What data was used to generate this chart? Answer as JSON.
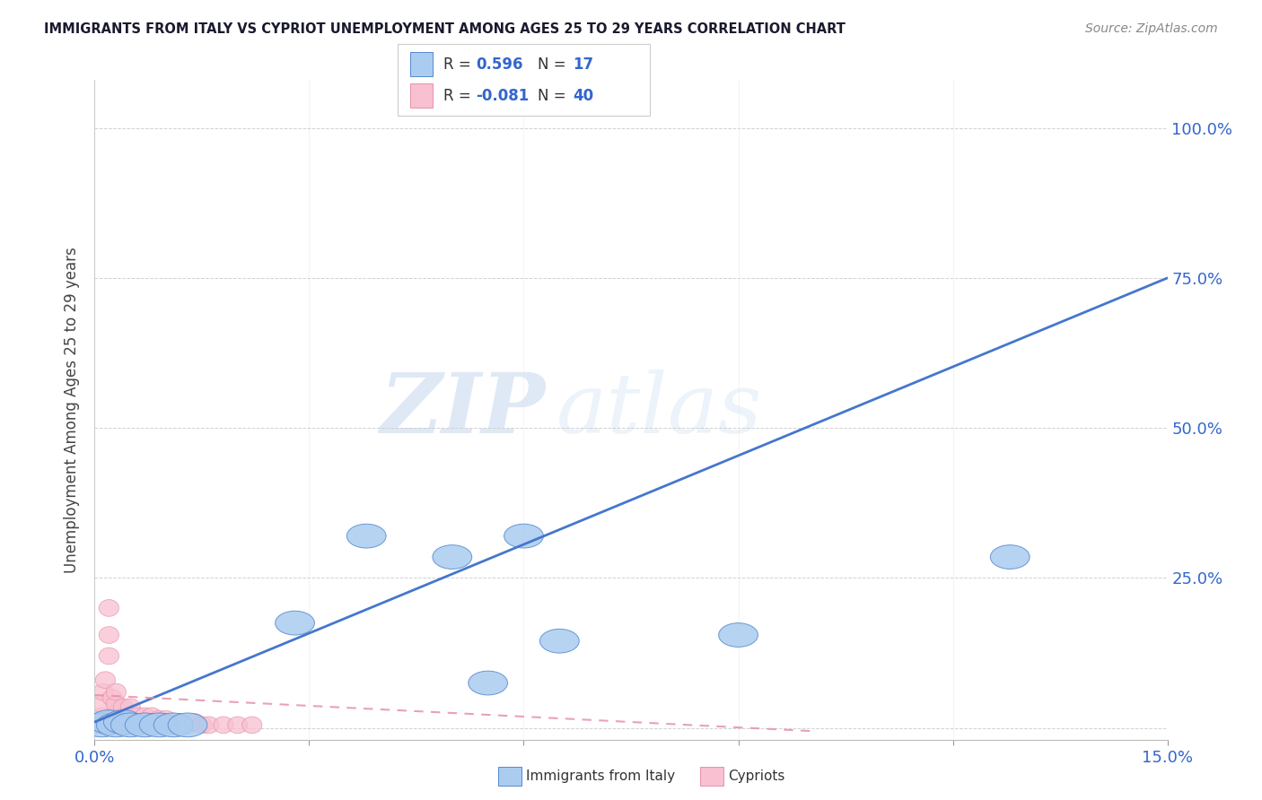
{
  "title": "IMMIGRANTS FROM ITALY VS CYPRIOT UNEMPLOYMENT AMONG AGES 25 TO 29 YEARS CORRELATION CHART",
  "source": "Source: ZipAtlas.com",
  "ylabel": "Unemployment Among Ages 25 to 29 years",
  "xlim": [
    0.0,
    0.15
  ],
  "ylim": [
    -0.02,
    1.08
  ],
  "blue_R": "0.596",
  "blue_N": "17",
  "pink_R": "-0.081",
  "pink_N": "40",
  "blue_color": "#aaccf0",
  "blue_edge": "#5588cc",
  "pink_color": "#f8c0d0",
  "pink_edge": "#e890a8",
  "blue_line_color": "#4477cc",
  "pink_line_color": "#e890a8",
  "legend_label_blue": "Immigrants from Italy",
  "legend_label_pink": "Cypriots",
  "watermark_zip": "ZIP",
  "watermark_atlas": "atlas",
  "blue_points_x": [
    0.001,
    0.002,
    0.003,
    0.004,
    0.005,
    0.007,
    0.009,
    0.011,
    0.013,
    0.028,
    0.038,
    0.05,
    0.055,
    0.06,
    0.065,
    0.09,
    0.128
  ],
  "blue_points_y": [
    0.005,
    0.01,
    0.005,
    0.01,
    0.005,
    0.005,
    0.005,
    0.005,
    0.005,
    0.175,
    0.32,
    0.285,
    0.075,
    0.32,
    0.145,
    0.155,
    0.285
  ],
  "pink_points_x": [
    0.0003,
    0.0005,
    0.0008,
    0.001,
    0.001,
    0.0012,
    0.0015,
    0.002,
    0.002,
    0.002,
    0.0025,
    0.003,
    0.003,
    0.003,
    0.003,
    0.004,
    0.004,
    0.004,
    0.005,
    0.005,
    0.005,
    0.006,
    0.006,
    0.007,
    0.007,
    0.008,
    0.008,
    0.009,
    0.009,
    0.01,
    0.01,
    0.011,
    0.012,
    0.013,
    0.014,
    0.015,
    0.016,
    0.018,
    0.02,
    0.022
  ],
  "pink_points_y": [
    0.005,
    0.01,
    0.005,
    0.02,
    0.04,
    0.06,
    0.08,
    0.12,
    0.155,
    0.2,
    0.05,
    0.005,
    0.02,
    0.04,
    0.06,
    0.005,
    0.02,
    0.035,
    0.005,
    0.015,
    0.035,
    0.005,
    0.02,
    0.005,
    0.02,
    0.005,
    0.02,
    0.005,
    0.015,
    0.005,
    0.015,
    0.005,
    0.01,
    0.005,
    0.01,
    0.005,
    0.005,
    0.005,
    0.005,
    0.005
  ],
  "blue_trend_x": [
    0.0,
    0.15
  ],
  "blue_trend_y": [
    0.01,
    0.75
  ],
  "pink_trend_x": [
    0.0,
    0.1
  ],
  "pink_trend_y": [
    0.055,
    -0.005
  ]
}
